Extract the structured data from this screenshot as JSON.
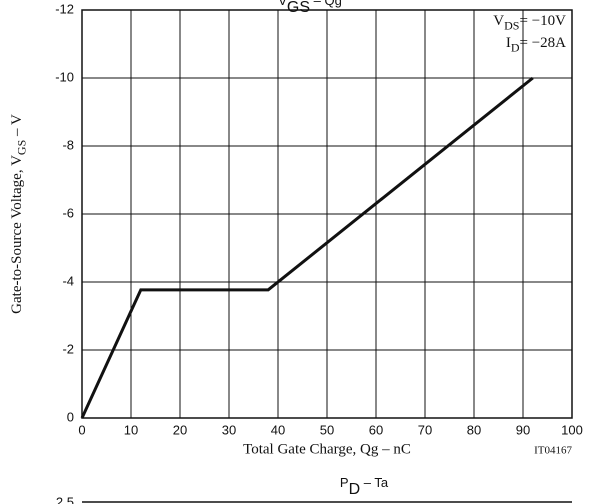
{
  "chart_data": [
    {
      "type": "line",
      "title": [
        "V",
        "GS",
        " – Qg"
      ],
      "x": [
        0,
        12,
        38,
        92
      ],
      "series": [
        {
          "color": "#111111",
          "values": [
            0,
            -3.77,
            -3.77,
            -10
          ]
        }
      ],
      "xlim": [
        0,
        100
      ],
      "xticks": [
        0,
        10,
        20,
        30,
        40,
        50,
        60,
        70,
        80,
        90,
        100
      ],
      "ylim": [
        0,
        -12
      ],
      "yticks": [
        0,
        -2,
        -4,
        -6,
        -8,
        -10,
        -12
      ],
      "grid": true,
      "x_label": "Total Gate Charge, Qg  –  nC",
      "y_label": [
        "Gate-to-Source Voltage, V",
        "GS",
        "  –  V"
      ],
      "annotations": [
        [
          "V",
          "DS",
          "= −10V"
        ],
        [
          "I",
          "D",
          "= −28A"
        ]
      ],
      "figure_id": "IT04167"
    },
    {
      "type": "line",
      "title": [
        "P",
        "D",
        "  –  Ta"
      ],
      "yticks": [
        2.5
      ]
    }
  ]
}
